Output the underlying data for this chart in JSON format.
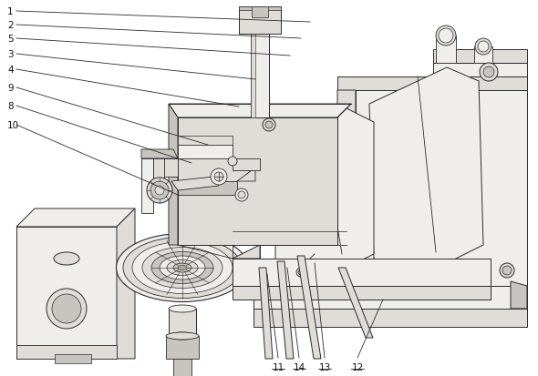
{
  "bg_color": "#ffffff",
  "line_color": "#2a2a2a",
  "fill_light": "#f0eeeb",
  "fill_mid": "#e0ddd8",
  "fill_dark": "#c8c5c0",
  "fill_darker": "#b0aaa3",
  "label_color": "#111111",
  "left_leaders": [
    [
      "1",
      8,
      13,
      340,
      25
    ],
    [
      "2",
      8,
      28,
      330,
      43
    ],
    [
      "5",
      8,
      43,
      318,
      62
    ],
    [
      "3",
      8,
      60,
      280,
      88
    ],
    [
      "4",
      8,
      77,
      262,
      118
    ],
    [
      "9",
      8,
      97,
      228,
      160
    ],
    [
      "8",
      8,
      117,
      210,
      180
    ],
    [
      "10",
      8,
      138,
      195,
      215
    ]
  ],
  "bottom_leaders": [
    [
      "11",
      305,
      398,
      293,
      302
    ],
    [
      "14",
      328,
      398,
      315,
      295
    ],
    [
      "13",
      356,
      398,
      345,
      290
    ],
    [
      "12",
      392,
      398,
      420,
      330
    ]
  ]
}
